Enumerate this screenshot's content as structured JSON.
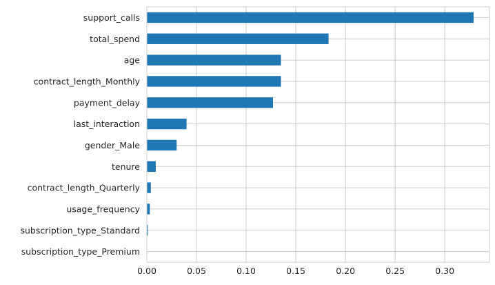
{
  "chart_data": {
    "type": "bar",
    "orientation": "horizontal",
    "title": "",
    "xlabel": "",
    "ylabel": "",
    "categories": [
      "support_calls",
      "total_spend",
      "age",
      "contract_length_Monthly",
      "payment_delay",
      "last_interaction",
      "gender_Male",
      "tenure",
      "contract_length_Quarterly",
      "usage_frequency",
      "subscription_type_Standard",
      "subscription_type_Premium"
    ],
    "values": [
      0.329,
      0.183,
      0.135,
      0.135,
      0.127,
      0.04,
      0.03,
      0.009,
      0.004,
      0.003,
      0.001,
      0.0
    ],
    "xlim": [
      0,
      0.345
    ],
    "xticks": [
      "0.00",
      "0.05",
      "0.10",
      "0.15",
      "0.20",
      "0.25",
      "0.30"
    ],
    "xtick_values": [
      0,
      0.05,
      0.1,
      0.15,
      0.2,
      0.25,
      0.3
    ],
    "grid": true,
    "legend": "none",
    "colors": {
      "bar": "#1f77b4",
      "grid": "#cccccc",
      "axes_border": "#cccccc",
      "text": "#262626"
    }
  }
}
